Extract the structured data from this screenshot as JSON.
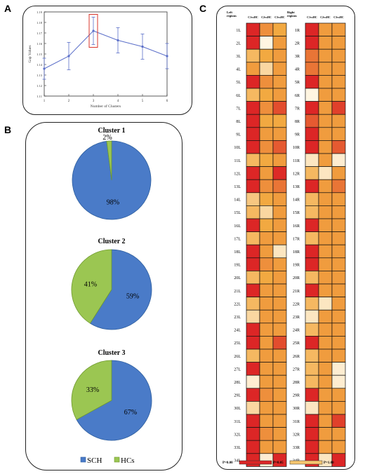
{
  "panels": {
    "a": "A",
    "b": "B",
    "c": "C"
  },
  "chart_data": [
    {
      "type": "line",
      "title": "",
      "xlabel": "Number of Clusters",
      "ylabel": "Gap Values",
      "x": [
        1,
        2,
        3,
        4,
        5,
        6
      ],
      "series": [
        {
          "values": [
            1.136,
            1.148,
            1.172,
            1.163,
            1.157,
            1.148
          ],
          "err": [
            0.01,
            0.013,
            0.013,
            0.012,
            0.012,
            0.012
          ]
        }
      ],
      "xlim": [
        1,
        6
      ],
      "ylim": [
        1.11,
        1.19
      ],
      "xticks": [
        "1",
        "2",
        "3",
        "4",
        "5",
        "6"
      ],
      "yticks": [
        "1.11",
        "1.12",
        "1.13",
        "1.14",
        "1.15",
        "1.16",
        "1.17",
        "1.18",
        "1.19"
      ],
      "highlight_x": 3,
      "color": "#5b6fc9",
      "highlight_color": "#d9342b"
    },
    {
      "type": "pie",
      "title": "Cluster 1",
      "slices": [
        {
          "name": "SCH",
          "value": 98,
          "label": "98%"
        },
        {
          "name": "HCs",
          "value": 2,
          "label": "2%"
        }
      ]
    },
    {
      "type": "pie",
      "title": "Cluster 2",
      "slices": [
        {
          "name": "SCH",
          "value": 59,
          "label": "59%"
        },
        {
          "name": "HCs",
          "value": 41,
          "label": "41%"
        }
      ]
    },
    {
      "type": "pie",
      "title": "Cluster 3",
      "slices": [
        {
          "name": "SCH",
          "value": 67,
          "label": "67%"
        },
        {
          "name": "HCs",
          "value": 33,
          "label": "33%"
        }
      ]
    },
    {
      "type": "heatmap",
      "left_header": "Left regions",
      "right_header": "Right regions",
      "columns": [
        "C1vsHC",
        "C2vsHC",
        "C3vsHC"
      ],
      "left_rows": [
        "1L",
        "2L",
        "3L",
        "4L",
        "5L",
        "6L",
        "7L",
        "8L",
        "9L",
        "10L",
        "11L",
        "12L",
        "13L",
        "14L",
        "15L",
        "16L",
        "17L",
        "18L",
        "19L",
        "20L",
        "21L",
        "22L",
        "23L",
        "24L",
        "25L",
        "26L",
        "27L",
        "28L",
        "29L",
        "30L",
        "31L",
        "32L",
        "33L",
        "34L"
      ],
      "right_rows": [
        "1R",
        "2R",
        "3R",
        "4R",
        "5R",
        "6R",
        "7R",
        "8R",
        "9R",
        "10R",
        "11R",
        "12R",
        "13R",
        "14R",
        "15R",
        "16R",
        "17R",
        "18R",
        "19R",
        "20R",
        "21R",
        "22R",
        "23R",
        "24R",
        "25R",
        "26R",
        "27R",
        "28R",
        "29R",
        "30R",
        "31R",
        "32R",
        "33R",
        "34R"
      ],
      "left_p": [
        [
          0.0,
          0.4,
          0.5
        ],
        [
          0.0,
          1.0,
          0.45
        ],
        [
          0.6,
          0.5,
          0.45
        ],
        [
          0.45,
          0.8,
          0.45
        ],
        [
          0.0,
          0.4,
          0.45
        ],
        [
          0.6,
          0.5,
          0.45
        ],
        [
          0.0,
          0.4,
          0.15
        ],
        [
          0.0,
          0.5,
          0.5
        ],
        [
          0.0,
          0.45,
          0.45
        ],
        [
          0.0,
          0.4,
          0.2
        ],
        [
          0.6,
          0.5,
          0.45
        ],
        [
          0.0,
          0.45,
          0.02
        ],
        [
          0.0,
          0.4,
          0.3
        ],
        [
          0.7,
          0.5,
          0.45
        ],
        [
          0.6,
          0.8,
          0.45
        ],
        [
          0.0,
          0.5,
          0.45
        ],
        [
          0.6,
          0.45,
          0.45
        ],
        [
          0.0,
          0.45,
          0.9
        ],
        [
          0.0,
          0.4,
          0.45
        ],
        [
          0.6,
          0.5,
          0.45
        ],
        [
          0.0,
          0.45,
          0.45
        ],
        [
          0.6,
          0.45,
          0.45
        ],
        [
          0.8,
          0.45,
          0.45
        ],
        [
          0.0,
          0.45,
          0.45
        ],
        [
          0.0,
          0.45,
          0.15
        ],
        [
          0.6,
          0.45,
          0.45
        ],
        [
          0.0,
          0.45,
          0.45
        ],
        [
          0.95,
          0.45,
          0.45
        ],
        [
          0.0,
          0.4,
          0.45
        ],
        [
          0.8,
          0.45,
          0.45
        ],
        [
          0.0,
          0.45,
          0.45
        ],
        [
          0.0,
          0.4,
          0.45
        ],
        [
          0.0,
          0.45,
          0.45
        ],
        [
          0.0,
          0.95,
          0.0
        ]
      ],
      "right_p": [
        [
          0.0,
          0.45,
          0.45
        ],
        [
          0.0,
          0.45,
          0.45
        ],
        [
          0.3,
          0.45,
          0.45
        ],
        [
          0.3,
          0.45,
          0.45
        ],
        [
          0.0,
          0.45,
          0.45
        ],
        [
          1.0,
          0.45,
          0.45
        ],
        [
          0.0,
          0.45,
          0.1
        ],
        [
          0.2,
          0.45,
          0.45
        ],
        [
          0.0,
          0.45,
          0.45
        ],
        [
          0.0,
          0.45,
          0.2
        ],
        [
          0.9,
          0.45,
          0.95
        ],
        [
          0.6,
          0.9,
          0.45
        ],
        [
          0.0,
          0.45,
          0.3
        ],
        [
          0.6,
          0.45,
          0.45
        ],
        [
          0.6,
          0.45,
          0.45
        ],
        [
          0.0,
          0.45,
          0.45
        ],
        [
          0.6,
          0.45,
          0.45
        ],
        [
          0.0,
          0.45,
          0.45
        ],
        [
          0.0,
          0.45,
          0.45
        ],
        [
          0.6,
          0.45,
          0.45
        ],
        [
          0.0,
          0.45,
          0.45
        ],
        [
          0.6,
          0.9,
          0.45
        ],
        [
          0.9,
          0.45,
          0.45
        ],
        [
          0.6,
          0.45,
          0.45
        ],
        [
          0.0,
          0.45,
          0.45
        ],
        [
          0.6,
          0.45,
          0.45
        ],
        [
          0.6,
          0.45,
          0.95
        ],
        [
          0.6,
          0.45,
          0.95
        ],
        [
          0.0,
          0.45,
          0.45
        ],
        [
          0.9,
          0.45,
          0.45
        ],
        [
          0.0,
          0.45,
          0.1
        ],
        [
          0.0,
          0.45,
          0.45
        ],
        [
          0.0,
          0.45,
          0.45
        ],
        [
          0.0,
          0.9,
          0.0
        ]
      ],
      "scale_labels": [
        "P=0.00",
        "P=0.05",
        "P=1.00"
      ]
    }
  ],
  "legend": [
    {
      "name": "SCH",
      "color": "#4a7bc8"
    },
    {
      "name": "HCs",
      "color": "#9bc652"
    }
  ]
}
